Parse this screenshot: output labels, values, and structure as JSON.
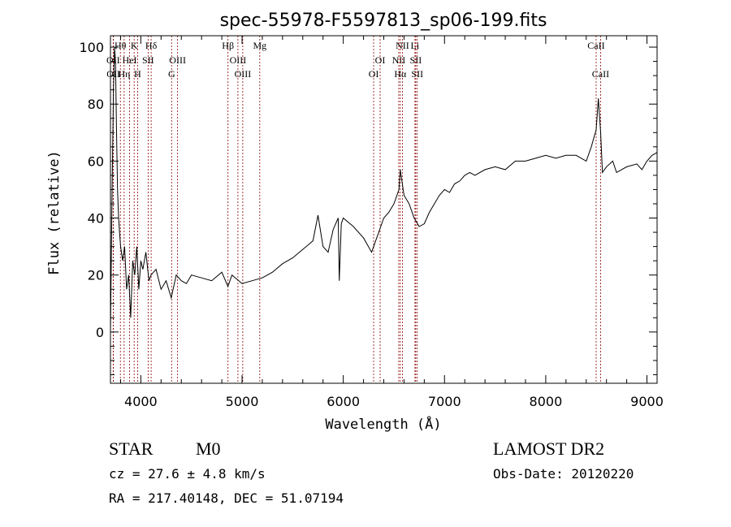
{
  "chart_data": {
    "type": "line",
    "title": "spec-55978-F5597813_sp06-199.fits",
    "xlabel": "Wavelength (Å)",
    "ylabel": "Flux (relative)",
    "xlim": [
      3700,
      9100
    ],
    "ylim": [
      -18,
      104
    ],
    "x_ticks": [
      4000,
      5000,
      6000,
      7000,
      8000,
      9000
    ],
    "y_ticks": [
      0,
      20,
      40,
      60,
      80,
      100
    ],
    "grid": false,
    "series": [
      {
        "x": [
          3700,
          3710,
          3720,
          3730,
          3740,
          3750,
          3760,
          3770,
          3780,
          3790,
          3800,
          3820,
          3840,
          3860,
          3880,
          3900,
          3920,
          3940,
          3960,
          3980,
          4000,
          4020,
          4050,
          4080,
          4100,
          4150,
          4200,
          4250,
          4300,
          4350,
          4400,
          4450,
          4500,
          4600,
          4700,
          4800,
          4860,
          4900,
          5000,
          5100,
          5200,
          5300,
          5400,
          5500,
          5600,
          5700,
          5750,
          5800,
          5850,
          5900,
          5950,
          5960,
          5980,
          6000,
          6100,
          6200,
          6280,
          6300,
          6350,
          6400,
          6450,
          6500,
          6550,
          6563,
          6600,
          6650,
          6700,
          6750,
          6800,
          6850,
          6900,
          6950,
          7000,
          7050,
          7100,
          7150,
          7200,
          7250,
          7300,
          7400,
          7500,
          7600,
          7700,
          7800,
          7900,
          8000,
          8100,
          8200,
          8300,
          8400,
          8450,
          8498,
          8520,
          8542,
          8560,
          8600,
          8662,
          8700,
          8800,
          8900,
          8950,
          9000,
          9050,
          9100
        ],
        "y": [
          0,
          30,
          60,
          85,
          100,
          95,
          70,
          50,
          40,
          35,
          30,
          25,
          30,
          15,
          20,
          5,
          25,
          20,
          30,
          15,
          25,
          22,
          28,
          18,
          20,
          22,
          15,
          18,
          12,
          20,
          18,
          17,
          20,
          19,
          18,
          21,
          16,
          20,
          17,
          18,
          19,
          21,
          24,
          26,
          29,
          32,
          41,
          30,
          28,
          36,
          40,
          18,
          38,
          40,
          37,
          33,
          28,
          30,
          35,
          40,
          42,
          45,
          50,
          57,
          48,
          45,
          40,
          37,
          38,
          42,
          45,
          48,
          50,
          49,
          52,
          53,
          55,
          56,
          55,
          57,
          58,
          57,
          60,
          60,
          61,
          62,
          61,
          62,
          62,
          60,
          65,
          71,
          82,
          70,
          56,
          58,
          60,
          56,
          58,
          59,
          57,
          60,
          62,
          63
        ]
      }
    ],
    "spectral_lines": [
      {
        "label": "Hθ",
        "x": 3798,
        "row": 0
      },
      {
        "label": "K",
        "x": 3934,
        "row": 0
      },
      {
        "label": "Hδ",
        "x": 4102,
        "row": 0
      },
      {
        "label": "Hβ",
        "x": 4861,
        "row": 0
      },
      {
        "label": "Mg",
        "x": 5175,
        "row": 0
      },
      {
        "label": "NII",
        "x": 6584,
        "row": 0
      },
      {
        "label": "Li",
        "x": 6708,
        "row": 0
      },
      {
        "label": "CaII",
        "x": 8498,
        "row": 0
      },
      {
        "label": "OII",
        "x": 3727,
        "row": 1
      },
      {
        "label": "HeI",
        "x": 3889,
        "row": 1
      },
      {
        "label": "SII",
        "x": 4072,
        "row": 1
      },
      {
        "label": "OIII",
        "x": 4363,
        "row": 1
      },
      {
        "label": "OIII",
        "x": 4959,
        "row": 1
      },
      {
        "label": "OI",
        "x": 6364,
        "row": 1
      },
      {
        "label": "NII",
        "x": 6548,
        "row": 1
      },
      {
        "label": "SII",
        "x": 6716,
        "row": 1
      },
      {
        "label": "OII",
        "x": 3729,
        "row": 2
      },
      {
        "label": "Hη",
        "x": 3835,
        "row": 2
      },
      {
        "label": "H",
        "x": 3968,
        "row": 2
      },
      {
        "label": "G",
        "x": 4304,
        "row": 2
      },
      {
        "label": "OIII",
        "x": 5007,
        "row": 2
      },
      {
        "label": "OI",
        "x": 6300,
        "row": 2
      },
      {
        "label": "Hα",
        "x": 6563,
        "row": 2
      },
      {
        "label": "SII",
        "x": 6731,
        "row": 2
      },
      {
        "label": "CaII",
        "x": 8542,
        "row": 2
      }
    ],
    "line_color": "#000000",
    "marker_color": "#8b0000"
  },
  "info": {
    "class_label": "STAR",
    "subclass_label": "M0",
    "survey": "LAMOST DR2",
    "cz": "cz = 27.6 ± 4.8 km/s",
    "obs_date": "Obs-Date: 20120220",
    "coords": "RA = 217.40148, DEC =  51.07194"
  }
}
